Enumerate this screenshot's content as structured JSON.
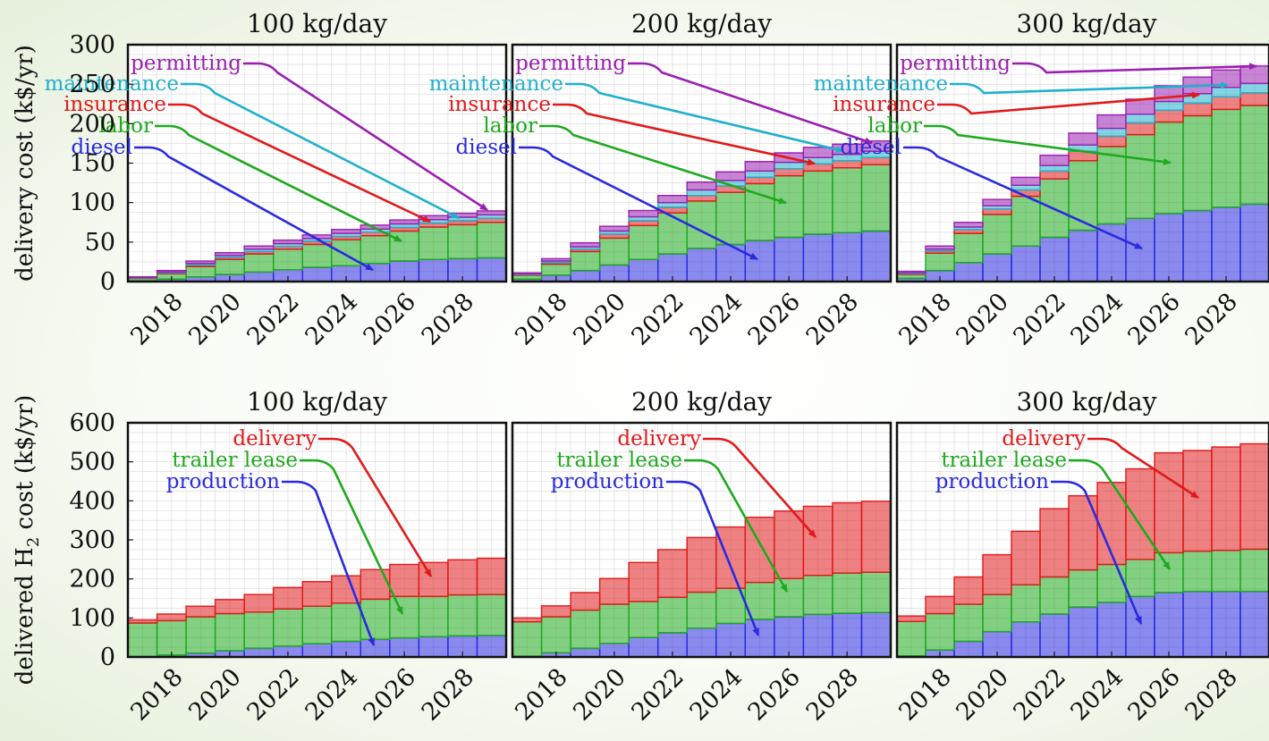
{
  "chart_data": {
    "type": "bar",
    "stacked": true,
    "layout": "2 rows x 3 columns of stacked bar panels",
    "grid": true,
    "x": [
      2017,
      2018,
      2019,
      2020,
      2021,
      2022,
      2023,
      2024,
      2025,
      2026,
      2027,
      2028,
      2029
    ],
    "xticks": [
      "2018",
      "2020",
      "2022",
      "2024",
      "2026",
      "2028"
    ],
    "rows": [
      {
        "ylabel": "delivery cost (k$/yr)",
        "ylim": [
          0,
          300
        ],
        "yticks": [
          "0",
          "50",
          "100",
          "150",
          "200",
          "250",
          "300"
        ],
        "colors": {
          "diesel": "#2a2ae0",
          "labor": "#1eaa1e",
          "insurance": "#e01a1a",
          "maintenance": "#1fb0cc",
          "permitting": "#9a1fb0"
        },
        "panels": [
          {
            "title": "100 kg/day",
            "series": [
              {
                "name": "diesel",
                "values": [
                  1,
                  3,
                  6,
                  9,
                  12,
                  15,
                  18,
                  20,
                  23,
                  26,
                  28,
                  29,
                  30
                ]
              },
              {
                "name": "labor",
                "values": [
                  3,
                  7,
                  13,
                  19,
                  23,
                  26,
                  29,
                  33,
                  35,
                  38,
                  41,
                  43,
                  45
                ]
              },
              {
                "name": "insurance",
                "values": [
                  0.5,
                  1,
                  2,
                  2.5,
                  3,
                  3.5,
                  4,
                  4,
                  4.5,
                  4.5,
                  5,
                  5,
                  5
                ]
              },
              {
                "name": "maintenance",
                "values": [
                  0.5,
                  1,
                  2,
                  2.5,
                  3,
                  3.5,
                  3.5,
                  4,
                  4,
                  4.5,
                  4.5,
                  4.5,
                  4.5
                ]
              },
              {
                "name": "permitting",
                "values": [
                  1,
                  2,
                  3,
                  3.5,
                  4,
                  4.5,
                  4.5,
                  5,
                  5,
                  5,
                  5,
                  5,
                  5
                ]
              }
            ]
          },
          {
            "title": "200 kg/day",
            "series": [
              {
                "name": "diesel",
                "values": [
                  3,
                  8,
                  14,
                  21,
                  28,
                  35,
                  42,
                  47,
                  52,
                  56,
                  60,
                  62,
                  64
                ]
              },
              {
                "name": "labor",
                "values": [
                  5,
                  14,
                  24,
                  34,
                  43,
                  52,
                  60,
                  66,
                  72,
                  78,
                  80,
                  82,
                  84
                ]
              },
              {
                "name": "insurance",
                "values": [
                  1,
                  2,
                  3,
                  5,
                  6,
                  7,
                  7,
                  8,
                  8,
                  9,
                  9,
                  9,
                  9
                ]
              },
              {
                "name": "maintenance",
                "values": [
                  1,
                  2,
                  3,
                  4,
                  5,
                  6,
                  7,
                  7,
                  8,
                  8,
                  8,
                  8,
                  8
                ]
              },
              {
                "name": "permitting",
                "values": [
                  1,
                  3,
                  5,
                  6,
                  8,
                  9,
                  10,
                  11,
                  12,
                  12,
                  13,
                  13,
                  13
                ]
              }
            ]
          },
          {
            "title": "300 kg/day",
            "series": [
              {
                "name": "diesel",
                "values": [
                  4,
                  14,
                  24,
                  35,
                  45,
                  56,
                  65,
                  73,
                  80,
                  86,
                  90,
                  94,
                  98
                ]
              },
              {
                "name": "labor",
                "values": [
                  5,
                  22,
                  37,
                  50,
                  63,
                  74,
                  88,
                  98,
                  106,
                  116,
                  120,
                  124,
                  125
                ]
              },
              {
                "name": "insurance",
                "values": [
                  1,
                  3,
                  5,
                  7,
                  8,
                  10,
                  12,
                  13,
                  15,
                  15,
                  16,
                  16,
                  16
                ]
              },
              {
                "name": "maintenance",
                "values": [
                  1,
                  2,
                  3,
                  4,
                  6,
                  7,
                  8,
                  10,
                  11,
                  11,
                  12,
                  12,
                  12
                ]
              },
              {
                "name": "permitting",
                "values": [
                  2,
                  4,
                  6,
                  8,
                  10,
                  13,
                  15,
                  17,
                  19,
                  20,
                  21,
                  22,
                  22
                ]
              }
            ]
          }
        ]
      },
      {
        "ylabel": "delivered H",
        "ylabel_sub": "2",
        "ylabel_rest": " cost (k$/yr)",
        "ylim": [
          0,
          600
        ],
        "yticks": [
          "0",
          "100",
          "200",
          "300",
          "400",
          "500",
          "600"
        ],
        "colors": {
          "production": "#2a2ae0",
          "trailer lease": "#1eaa1e",
          "delivery": "#e01a1a"
        },
        "panels": [
          {
            "title": "100 kg/day",
            "series": [
              {
                "name": "production",
                "values": [
                  1,
                  5,
                  10,
                  16,
                  22,
                  28,
                  34,
                  40,
                  45,
                  49,
                  52,
                  54,
                  55
                ]
              },
              {
                "name": "trailer lease",
                "values": [
                  86,
                  88,
                  93,
                  95,
                  93,
                  95,
                  96,
                  98,
                  103,
                  106,
                  103,
                  105,
                  105
                ]
              },
              {
                "name": "delivery",
                "values": [
                  8,
                  17,
                  27,
                  36,
                  45,
                  55,
                  63,
                  70,
                  76,
                  82,
                  87,
                  90,
                  93
                ]
              }
            ]
          },
          {
            "title": "200 kg/day",
            "series": [
              {
                "name": "production",
                "values": [
                  2,
                  11,
                  22,
                  35,
                  50,
                  62,
                  74,
                  86,
                  96,
                  103,
                  109,
                  112,
                  114
                ]
              },
              {
                "name": "trailer lease",
                "values": [
                  88,
                  92,
                  98,
                  100,
                  92,
                  91,
                  92,
                  90,
                  95,
                  98,
                  100,
                  103,
                  103
                ]
              },
              {
                "name": "delivery",
                "values": [
                  10,
                  28,
                  45,
                  66,
                  100,
                  122,
                  140,
                  157,
                  167,
                  173,
                  177,
                  180,
                  182
                ]
              }
            ]
          },
          {
            "title": "300 kg/day",
            "series": [
              {
                "name": "production",
                "values": [
                  3,
                  18,
                  40,
                  65,
                  90,
                  110,
                  128,
                  140,
                  155,
                  165,
                  168,
                  168,
                  168
                ]
              },
              {
                "name": "trailer lease",
                "values": [
                  88,
                  93,
                  95,
                  95,
                  95,
                  95,
                  95,
                  97,
                  95,
                  102,
                  103,
                  105,
                  108
                ]
              },
              {
                "name": "delivery",
                "values": [
                  14,
                  44,
                  70,
                  102,
                  137,
                  175,
                  190,
                  210,
                  232,
                  256,
                  258,
                  265,
                  270
                ]
              }
            ]
          }
        ]
      }
    ]
  }
}
